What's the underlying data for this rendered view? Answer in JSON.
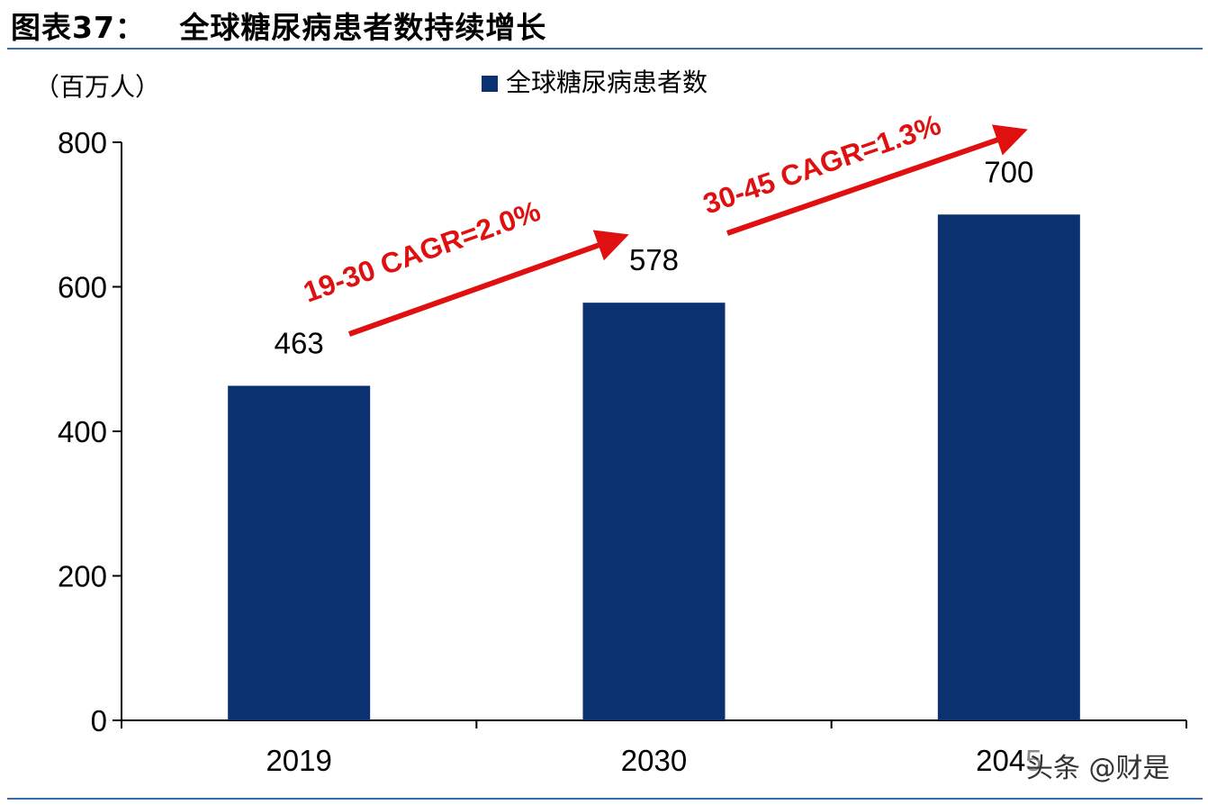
{
  "figure": {
    "title": "图表37：   全球糖尿病患者数持续增长",
    "unit_label": "（百万人）",
    "watermark": "头条 @财是"
  },
  "colors": {
    "bar": "#0b3170",
    "rule": "#3a6cb0",
    "annotation": "#e01010"
  },
  "chart_data": {
    "type": "bar",
    "categories": [
      "2019",
      "2030",
      "2045"
    ],
    "series": [
      {
        "name": "全球糖尿病患者数",
        "values": [
          463,
          578,
          700
        ]
      }
    ],
    "data_labels": [
      "463",
      "578",
      "700"
    ],
    "yticks": [
      "800",
      "600",
      "400",
      "200",
      "0"
    ],
    "ylim": [
      0,
      800
    ],
    "ylabel": "（百万人）",
    "legend_position": "top-center",
    "grid": false,
    "annotations": [
      {
        "text": "19-30 CAGR=2.0%"
      },
      {
        "text": "30-45 CAGR=1.3%"
      }
    ]
  }
}
